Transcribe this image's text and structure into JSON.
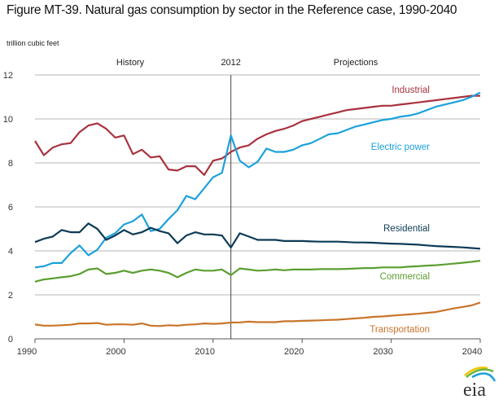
{
  "title": "Figure MT-39. Natural gas consumption by sector in the Reference case, 1990-2040",
  "logo_text": "eia",
  "chart_data": {
    "type": "line",
    "title": "Figure MT-39. Natural gas consumption by sector in the Reference case, 1990-2040",
    "ylabel": "trillion cubic feet",
    "xlabel": "",
    "xlim": [
      1990,
      2040
    ],
    "ylim": [
      0,
      12
    ],
    "xticks": [
      1990,
      2000,
      2010,
      2020,
      2030,
      2040
    ],
    "yticks": [
      0,
      2,
      4,
      6,
      8,
      10,
      12
    ],
    "grid": true,
    "divider": {
      "year": 2012,
      "label": "2012",
      "left_label": "History",
      "right_label": "Projections"
    },
    "x_start": 1990,
    "series": [
      {
        "name": "Industrial",
        "color": "#a8323e",
        "values": [
          9.0,
          8.35,
          8.7,
          8.85,
          8.9,
          9.4,
          9.7,
          9.8,
          9.55,
          9.15,
          9.25,
          8.4,
          8.6,
          8.25,
          8.3,
          7.7,
          7.65,
          7.85,
          7.85,
          7.45,
          8.1,
          8.2,
          8.5,
          8.7,
          8.8,
          9.1,
          9.3,
          9.45,
          9.55,
          9.7,
          9.9,
          10.0,
          10.1,
          10.2,
          10.3,
          10.4,
          10.45,
          10.5,
          10.55,
          10.6,
          10.6,
          10.65,
          10.7,
          10.75,
          10.8,
          10.85,
          10.9,
          10.95,
          11.0,
          11.05,
          11.05
        ]
      },
      {
        "name": "Electric power",
        "color": "#1ba1dc",
        "values": [
          3.25,
          3.3,
          3.45,
          3.45,
          3.9,
          4.25,
          3.8,
          4.05,
          4.6,
          4.8,
          5.2,
          5.35,
          5.65,
          4.9,
          5.0,
          5.45,
          5.85,
          6.5,
          6.35,
          6.85,
          7.35,
          7.55,
          9.25,
          8.1,
          7.8,
          8.05,
          8.65,
          8.5,
          8.5,
          8.6,
          8.8,
          8.9,
          9.1,
          9.3,
          9.35,
          9.5,
          9.65,
          9.75,
          9.85,
          9.95,
          10.0,
          10.1,
          10.15,
          10.25,
          10.4,
          10.55,
          10.65,
          10.75,
          10.85,
          11.0,
          11.2
        ]
      },
      {
        "name": "Residential",
        "color": "#0d3b55",
        "values": [
          4.4,
          4.55,
          4.65,
          4.95,
          4.85,
          4.85,
          5.25,
          5.0,
          4.5,
          4.7,
          4.95,
          4.75,
          4.85,
          5.05,
          4.9,
          4.8,
          4.35,
          4.7,
          4.85,
          4.75,
          4.75,
          4.7,
          4.15,
          4.8,
          4.65,
          4.5,
          4.5,
          4.5,
          4.45,
          4.45,
          4.45,
          4.43,
          4.42,
          4.42,
          4.42,
          4.4,
          4.38,
          4.38,
          4.37,
          4.35,
          4.33,
          4.32,
          4.3,
          4.28,
          4.25,
          4.22,
          4.2,
          4.18,
          4.16,
          4.13,
          4.1
        ]
      },
      {
        "name": "Commercial",
        "color": "#5c9e30",
        "values": [
          2.6,
          2.7,
          2.75,
          2.8,
          2.85,
          2.95,
          3.15,
          3.2,
          2.95,
          3.0,
          3.1,
          3.0,
          3.1,
          3.15,
          3.1,
          3.0,
          2.8,
          3.0,
          3.15,
          3.1,
          3.1,
          3.15,
          2.9,
          3.2,
          3.15,
          3.1,
          3.12,
          3.15,
          3.12,
          3.15,
          3.15,
          3.15,
          3.17,
          3.17,
          3.17,
          3.18,
          3.2,
          3.22,
          3.22,
          3.25,
          3.25,
          3.25,
          3.28,
          3.3,
          3.33,
          3.35,
          3.38,
          3.42,
          3.46,
          3.5,
          3.55
        ]
      },
      {
        "name": "Transportation",
        "color": "#c8752a",
        "values": [
          0.65,
          0.6,
          0.6,
          0.62,
          0.64,
          0.7,
          0.7,
          0.72,
          0.64,
          0.66,
          0.66,
          0.64,
          0.7,
          0.6,
          0.58,
          0.62,
          0.6,
          0.64,
          0.66,
          0.7,
          0.68,
          0.7,
          0.74,
          0.75,
          0.78,
          0.76,
          0.76,
          0.76,
          0.8,
          0.8,
          0.82,
          0.83,
          0.84,
          0.86,
          0.87,
          0.9,
          0.93,
          0.96,
          1.0,
          1.02,
          1.05,
          1.08,
          1.11,
          1.14,
          1.18,
          1.22,
          1.3,
          1.38,
          1.45,
          1.52,
          1.65
        ]
      }
    ]
  }
}
